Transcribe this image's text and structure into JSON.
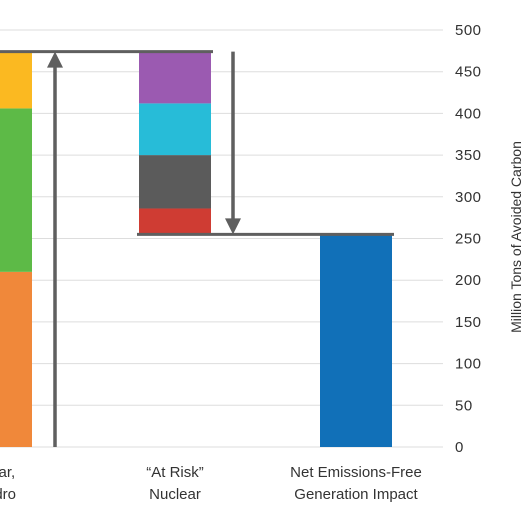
{
  "chart_data": {
    "type": "bar",
    "stacked": true,
    "y_axis_position": "right",
    "ylabel": "Million Tons of Avoided Carbon",
    "ylim": [
      0,
      500
    ],
    "yticks": [
      0,
      50,
      100,
      150,
      200,
      250,
      300,
      350,
      400,
      450,
      500
    ],
    "grid": true,
    "legend": "none",
    "categories": [
      {
        "label_lines": [
          "Solar,",
          "Hydro"
        ]
      },
      {
        "label_lines": [
          "“At Risk”",
          "Nuclear"
        ]
      },
      {
        "label_lines": [
          "Net Emissions-Free",
          "Generation Impact"
        ]
      }
    ],
    "bars": [
      {
        "category_index": 0,
        "segments": [
          {
            "start": 0,
            "end": 210,
            "color": "#f0883a"
          },
          {
            "start": 210,
            "end": 406,
            "color": "#5dba47"
          },
          {
            "start": 406,
            "end": 474,
            "color": "#fbb921"
          }
        ]
      },
      {
        "category_index": 1,
        "segments": [
          {
            "start": 255,
            "end": 286,
            "color": "#cf3c33"
          },
          {
            "start": 286,
            "end": 350,
            "color": "#5b5b5b"
          },
          {
            "start": 350,
            "end": 412,
            "color": "#27bcd8"
          },
          {
            "start": 412,
            "end": 474,
            "color": "#9b5ab1"
          }
        ]
      },
      {
        "category_index": 2,
        "segments": [
          {
            "start": 0,
            "end": 255,
            "color": "#1170b8"
          }
        ]
      }
    ],
    "reference_lines": [
      {
        "value": 474,
        "from_category": 0,
        "to_category": 1
      },
      {
        "value": 255,
        "from_category": 1,
        "to_category": 2
      }
    ],
    "arrows": [
      {
        "from": 0,
        "to": 474,
        "direction": "up"
      },
      {
        "from": 474,
        "to": 255,
        "direction": "down"
      }
    ],
    "colors": {
      "axis_line": "#5f5f5f",
      "arrow": "#5f5f5f",
      "grid": "#dddddd",
      "text": "#333333"
    }
  }
}
